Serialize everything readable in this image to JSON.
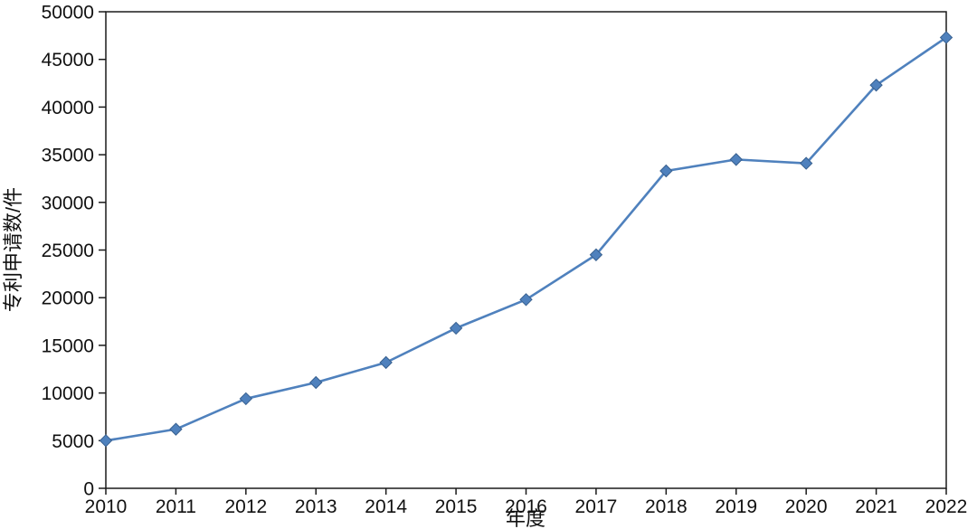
{
  "chart_data": {
    "type": "line",
    "title": "",
    "xlabel": "年度",
    "ylabel": "专利申请数/件",
    "x": [
      2010,
      2011,
      2012,
      2013,
      2014,
      2015,
      2016,
      2017,
      2018,
      2019,
      2020,
      2021,
      2022
    ],
    "series": [
      {
        "name": "专利申请数",
        "values": [
          5000,
          6200,
          9400,
          11100,
          13200,
          16800,
          19800,
          24500,
          33300,
          34500,
          34100,
          42300,
          47300
        ]
      }
    ],
    "ylim": [
      0,
      50000
    ],
    "ytick_step": 5000,
    "y_tick_labels": [
      "0",
      "5000",
      "10000",
      "15000",
      "20000",
      "25000",
      "30000",
      "35000",
      "40000",
      "45000",
      "50000"
    ],
    "grid": false,
    "legend": "none",
    "line_color": "#4f81bd",
    "marker": "diamond",
    "marker_edge_color": "#38608f",
    "axis_color": "#1a1a1a",
    "background_color": "#ffffff"
  }
}
